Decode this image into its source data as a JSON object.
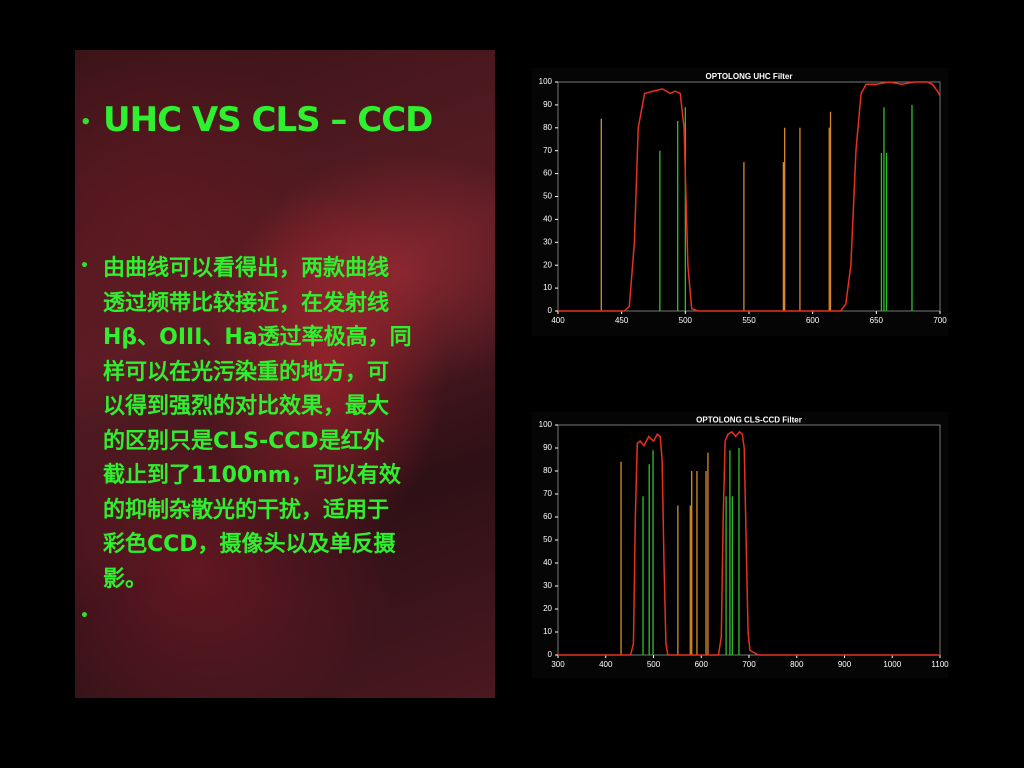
{
  "slide": {
    "title": "UHC VS CLS – CCD",
    "body": [
      "由曲线可以看得出，两款曲线",
      "透过频带比较接近，在发射线",
      "Hβ、OIII、Ha透过率极高，同",
      "样可以在光污染重的地方，可",
      "以得到强烈的对比效果，最大",
      "的区别只是CLS-CCD是红外",
      "截止到了1100nm，可以有效",
      "的抑制杂散光的干扰，适用于",
      "彩色CCD，摄像头以及单反摄",
      "影。"
    ]
  },
  "chart_data": [
    {
      "type": "line",
      "title": "OPTOLONG UHC Filter",
      "xlim": [
        400,
        700
      ],
      "xticks": [
        400,
        450,
        500,
        550,
        600,
        650,
        700
      ],
      "ylim": [
        0,
        100
      ],
      "yticks": [
        0,
        10,
        20,
        30,
        40,
        50,
        60,
        70,
        80,
        90,
        100
      ],
      "series": [
        {
          "kind": "stem",
          "color": "#d98a2a",
          "x": [
            434,
            546,
            577,
            578,
            590,
            613,
            614
          ],
          "values": [
            84,
            65,
            65,
            80,
            80,
            80,
            87
          ]
        },
        {
          "kind": "stem",
          "color": "#2fc02f",
          "x": [
            480,
            494,
            500,
            654,
            656,
            658,
            678
          ],
          "values": [
            70,
            83,
            89,
            69,
            89,
            69,
            90
          ]
        },
        {
          "kind": "curve",
          "color": "#e8301e",
          "x": [
            400,
            440,
            452,
            456,
            460,
            463,
            468,
            475,
            482,
            488,
            492,
            496,
            499,
            502,
            505,
            510,
            560,
            610,
            622,
            626,
            630,
            634,
            638,
            642,
            650,
            660,
            670,
            680,
            690,
            694,
            698,
            700
          ],
          "values": [
            0,
            0,
            0,
            2,
            30,
            80,
            95,
            96,
            97,
            95,
            96,
            95,
            80,
            20,
            1,
            0,
            0,
            0,
            0,
            3,
            20,
            70,
            95,
            99,
            99,
            100,
            99,
            100,
            100,
            99,
            96,
            94
          ]
        }
      ]
    },
    {
      "type": "line",
      "title": "OPTOLONG CLS-CCD Filter",
      "xlim": [
        300,
        1100
      ],
      "xticks": [
        300,
        400,
        500,
        600,
        700,
        800,
        900,
        1000,
        1100
      ],
      "ylim": [
        0,
        100
      ],
      "yticks": [
        0,
        10,
        20,
        30,
        40,
        50,
        60,
        70,
        80,
        90,
        100
      ],
      "series": [
        {
          "kind": "stem",
          "color": "#d98a2a",
          "x": [
            432,
            551,
            577,
            580,
            591,
            610,
            614
          ],
          "values": [
            84,
            65,
            65,
            80,
            80,
            80,
            88
          ]
        },
        {
          "kind": "stem",
          "color": "#2fc02f",
          "x": [
            478,
            491,
            499,
            652,
            660,
            665,
            679
          ],
          "values": [
            69,
            83,
            89,
            69,
            89,
            69,
            90
          ]
        },
        {
          "kind": "curve",
          "color": "#e8301e",
          "x": [
            300,
            440,
            452,
            458,
            462,
            466,
            472,
            480,
            490,
            500,
            508,
            514,
            518,
            522,
            526,
            530,
            560,
            620,
            636,
            642,
            646,
            650,
            656,
            664,
            672,
            680,
            686,
            690,
            694,
            698,
            702,
            720,
            800,
            900,
            1000,
            1100
          ],
          "values": [
            0,
            0,
            0,
            5,
            60,
            92,
            93,
            91,
            95,
            93,
            96,
            95,
            85,
            40,
            5,
            0,
            0,
            0,
            0,
            8,
            60,
            93,
            96,
            97,
            95,
            97,
            96,
            90,
            50,
            10,
            2,
            0,
            0,
            0,
            0,
            0
          ]
        }
      ]
    }
  ]
}
